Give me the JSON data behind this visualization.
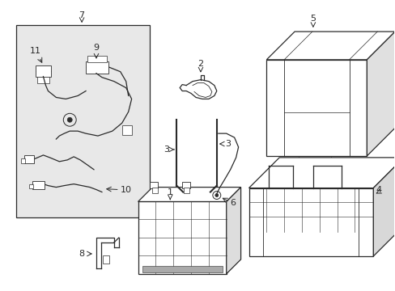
{
  "background_color": "#ffffff",
  "line_color": "#2a2a2a",
  "label_color": "#000000",
  "fig_width": 4.89,
  "fig_height": 3.6,
  "dpi": 100,
  "box_fill": "#e8e8e8"
}
